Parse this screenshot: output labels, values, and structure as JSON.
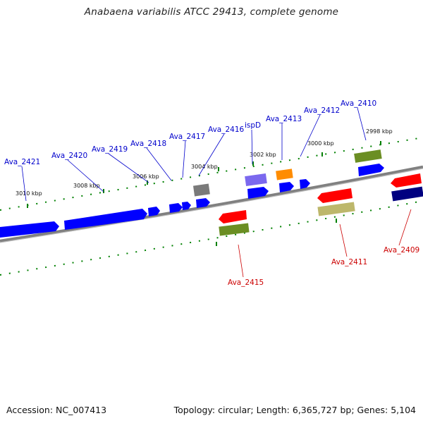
{
  "title": "Anabaena variabilis ATCC 29413, complete genome",
  "footer": {
    "accession": "Accession: NC_007413",
    "stats": "Topology: circular; Length: 6,365,727 bp; Genes: 5,104"
  },
  "ticks": [
    "3010 kbp",
    "3008 kbp",
    "3006 kbp",
    "3004 kbp",
    "3002 kbp",
    "3000 kbp",
    "2998 kbp"
  ],
  "genes_top": [
    "Ava_2421",
    "Ava_2420",
    "Ava_2419",
    "Ava_2418",
    "Ava_2417",
    "Ava_2416",
    "ispD",
    "Ava_2413",
    "Ava_2412",
    "Ava_2410"
  ],
  "genes_bottom": [
    "Ava_2415",
    "Ava_2411",
    "Ava_2409"
  ],
  "colors": {
    "forward_label": "#0000cc",
    "reverse_label": "#cc0000",
    "cds_forward": "#0000ff",
    "cds_reverse": "#ff0000",
    "green_feature": "#6b8e23",
    "khaki_feature": "#bdb76b",
    "gray_feature": "#808080",
    "purple_feature": "#7b68ee",
    "orange_feature": "#ff8c00",
    "navy_feature": "#000080",
    "tick_green": "#008000",
    "backbone": "#808080"
  }
}
